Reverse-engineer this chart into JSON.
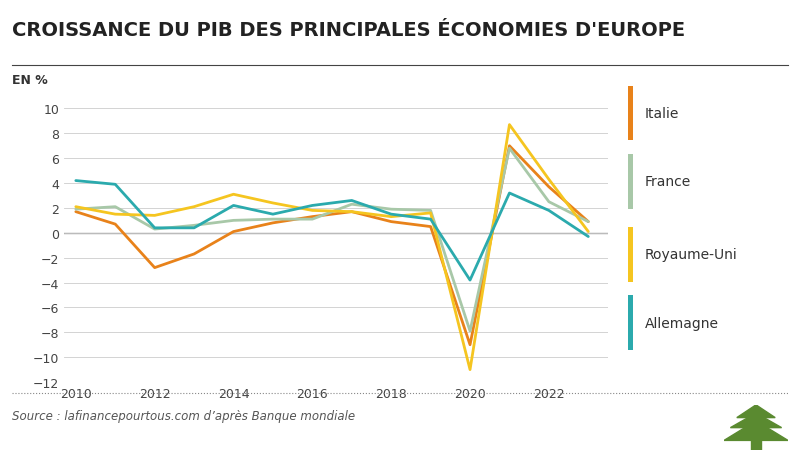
{
  "title": "CROISSANCE DU PIB DES PRINCIPALES ÉCONOMIES D'EUROPE",
  "ylabel": "EN %",
  "years": [
    2010,
    2011,
    2012,
    2013,
    2014,
    2015,
    2016,
    2017,
    2018,
    2019,
    2020,
    2021,
    2022,
    2023
  ],
  "series": {
    "Italie": {
      "color": "#E8821A",
      "data": [
        1.7,
        0.7,
        -2.8,
        -1.7,
        0.1,
        0.8,
        1.3,
        1.7,
        0.9,
        0.5,
        -9.0,
        7.0,
        3.7,
        0.9
      ]
    },
    "France": {
      "color": "#A8C8A8",
      "data": [
        1.9,
        2.1,
        0.3,
        0.6,
        1.0,
        1.1,
        1.1,
        2.3,
        1.9,
        1.8,
        -7.9,
        6.8,
        2.5,
        0.9
      ]
    },
    "Royaume-Uni": {
      "color": "#F5C520",
      "data": [
        2.1,
        1.5,
        1.4,
        2.1,
        3.1,
        2.4,
        1.8,
        1.7,
        1.3,
        1.6,
        -11.0,
        8.7,
        4.3,
        0.1
      ]
    },
    "Allemagne": {
      "color": "#2BAAAD",
      "data": [
        4.2,
        3.9,
        0.4,
        0.4,
        2.2,
        1.5,
        2.2,
        2.6,
        1.5,
        1.1,
        -3.8,
        3.2,
        1.8,
        -0.3
      ]
    }
  },
  "ylim": [
    -12,
    10
  ],
  "yticks": [
    -12,
    -10,
    -8,
    -6,
    -4,
    -2,
    0,
    2,
    4,
    6,
    8,
    10
  ],
  "background_color": "#FFFFFF",
  "grid_color": "#CCCCCC",
  "source_text": "Source : lafinancepourtous.com d’après Banque mondiale",
  "title_fontsize": 14,
  "label_fontsize": 9,
  "legend_order": [
    "Italie",
    "France",
    "Royaume-Uni",
    "Allemagne"
  ]
}
